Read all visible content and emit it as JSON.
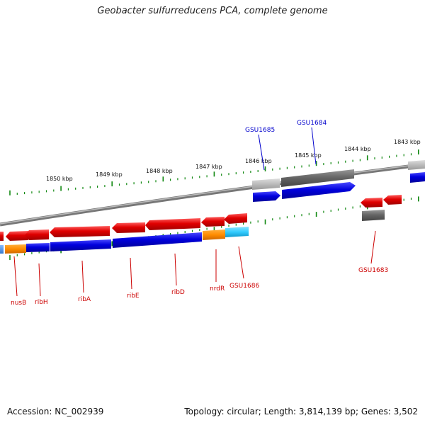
{
  "title": "Geobacter sulfurreducens PCA, complete genome",
  "footer": {
    "accession": "Accession: NC_002939",
    "info": "Topology: circular; Length: 3,814,139 bp; Genes: 3,502"
  },
  "colors": {
    "forward_gene": "#e00000",
    "cds_blue": "#0000dd",
    "orange": "#ff8c00",
    "cyan": "#33ccff",
    "gray": "#777777",
    "light_gray": "#bbbbbb",
    "tick_green": "#118811",
    "label_red": "#cc0000",
    "label_blue": "#0000cc",
    "backbone": "#888888"
  },
  "scale_labels": [
    "1850 kbp",
    "1849 kbp",
    "1848 kbp",
    "1847 kbp",
    "1846 kbp",
    "1845 kbp",
    "1844 kbp",
    "1843 kbp"
  ],
  "gene_labels_top": [
    "GSU1685",
    "GSU1684"
  ],
  "gene_labels_bottom": [
    "nusB",
    "ribH",
    "ribA",
    "ribE",
    "ribD",
    "nrdR",
    "GSU1686",
    "GSU1683"
  ]
}
